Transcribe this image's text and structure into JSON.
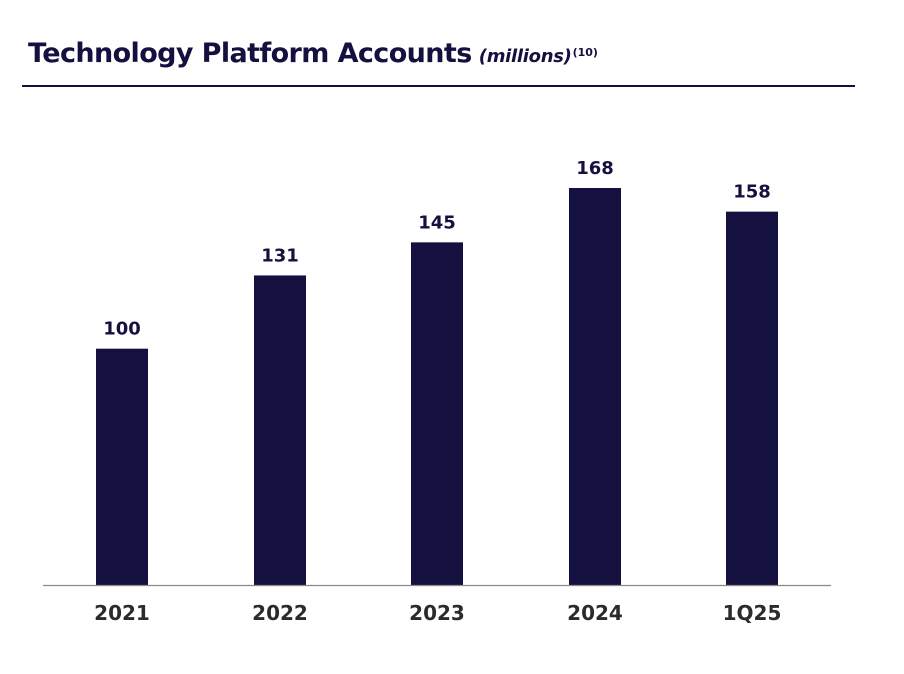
{
  "colors": {
    "bar": "#14103f",
    "text": "#14103f",
    "tick_text": "#2b2b2b",
    "axis": "#8a8a8a"
  },
  "title": {
    "main": "Technology Platform Accounts",
    "unit": "(millions)",
    "note": "(10)"
  },
  "chart_data": {
    "type": "bar",
    "title": "Technology Platform Accounts (millions)",
    "xlabel": "",
    "ylabel": "",
    "categories": [
      "2021",
      "2022",
      "2023",
      "2024",
      "1Q25"
    ],
    "values": [
      100,
      131,
      145,
      168,
      158
    ],
    "data_labels": [
      "100",
      "131",
      "145",
      "168",
      "158"
    ],
    "ylim": [
      0,
      168
    ],
    "grid": false,
    "legend": "none"
  }
}
